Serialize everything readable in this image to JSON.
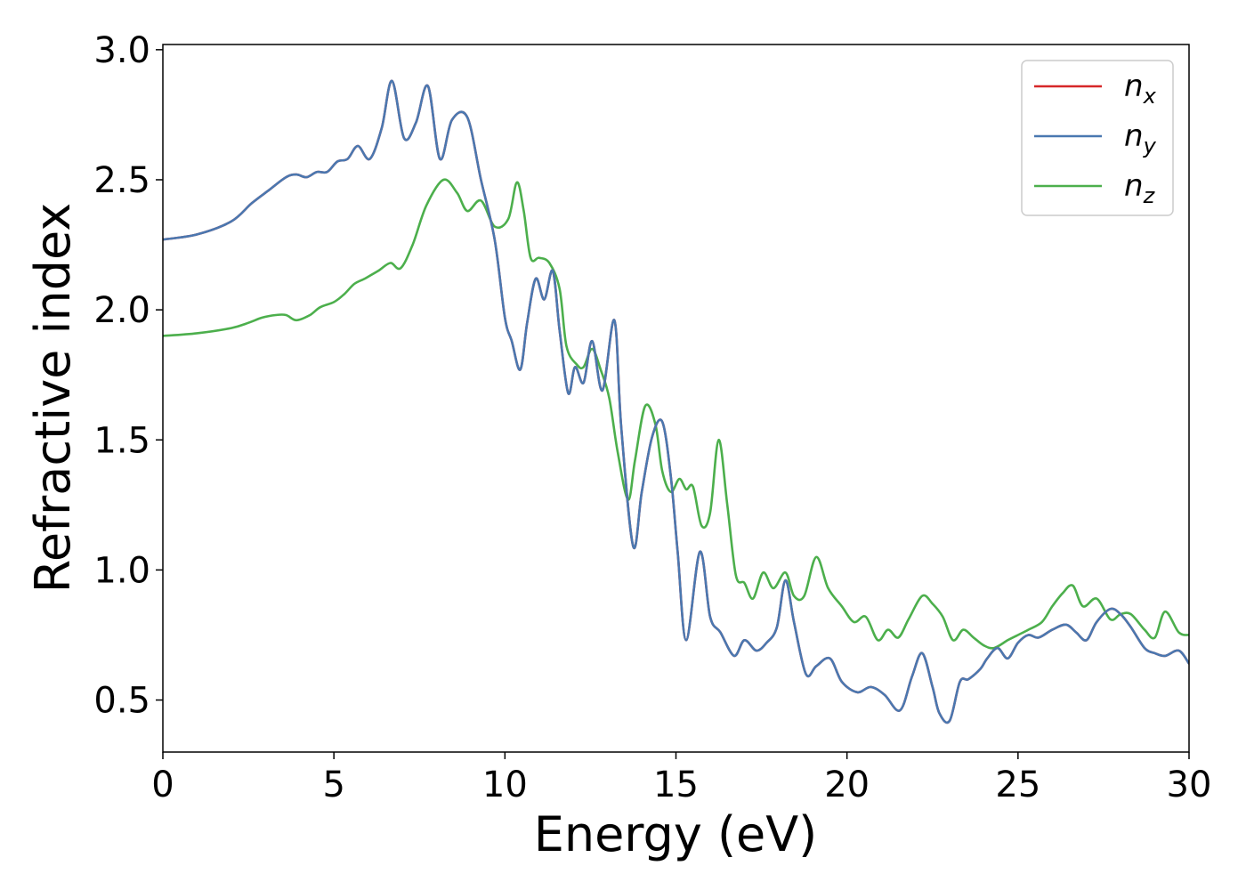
{
  "chart_data": {
    "type": "line",
    "title": "",
    "xlabel": "Energy (eV)",
    "ylabel": "Refractive index",
    "xlim": [
      0,
      30
    ],
    "ylim": [
      0.3,
      3.02
    ],
    "xticks": [
      0,
      5,
      10,
      15,
      20,
      25,
      30
    ],
    "yticks": [
      0.5,
      1.0,
      1.5,
      2.0,
      2.5,
      3.0
    ],
    "xtick_labels": [
      "0",
      "5",
      "10",
      "15",
      "20",
      "25",
      "30"
    ],
    "ytick_labels": [
      "0.5",
      "1.0",
      "1.5",
      "2.0",
      "2.5",
      "3.0"
    ],
    "grid": false,
    "legend_position": "top-right",
    "colors": {
      "n_x": "#d62728",
      "n_y": "#4a78b0",
      "n_z": "#4caf4c"
    },
    "series": [
      {
        "name": "n_x",
        "label_base": "n",
        "label_sub": "x",
        "x": [
          0,
          1,
          2,
          2.6,
          3.1,
          3.6,
          3.9,
          4.2,
          4.5,
          4.8,
          5.1,
          5.4,
          5.7,
          6.05,
          6.4,
          6.7,
          7.05,
          7.4,
          7.75,
          8.1,
          8.45,
          8.9,
          9.3,
          9.7,
          10.0,
          10.2,
          10.45,
          10.65,
          10.9,
          11.15,
          11.4,
          11.6,
          11.85,
          12.05,
          12.3,
          12.55,
          12.85,
          13.2,
          13.4,
          13.75,
          14.0,
          14.3,
          14.6,
          14.85,
          15.05,
          15.3,
          15.7,
          16.0,
          16.3,
          16.7,
          17.0,
          17.35,
          17.65,
          17.95,
          18.2,
          18.45,
          18.8,
          19.1,
          19.5,
          19.85,
          20.3,
          20.7,
          21.1,
          21.55,
          21.9,
          22.2,
          22.5,
          22.7,
          23.0,
          23.3,
          23.55,
          23.9,
          24.1,
          24.4,
          24.7,
          25.0,
          25.3,
          25.6,
          26.0,
          26.4,
          26.7,
          27.0,
          27.3,
          27.7,
          28.0,
          28.3,
          28.7,
          29.0,
          29.3,
          29.7,
          30.0
        ],
        "y": [
          2.27,
          2.29,
          2.34,
          2.41,
          2.46,
          2.51,
          2.52,
          2.51,
          2.53,
          2.53,
          2.57,
          2.58,
          2.63,
          2.58,
          2.7,
          2.88,
          2.66,
          2.72,
          2.86,
          2.58,
          2.73,
          2.74,
          2.5,
          2.27,
          1.97,
          1.88,
          1.77,
          1.95,
          2.12,
          2.04,
          2.15,
          1.92,
          1.68,
          1.78,
          1.72,
          1.88,
          1.69,
          1.96,
          1.55,
          1.09,
          1.3,
          1.51,
          1.57,
          1.36,
          1.07,
          0.73,
          1.07,
          0.82,
          0.76,
          0.67,
          0.73,
          0.69,
          0.72,
          0.78,
          0.96,
          0.8,
          0.6,
          0.63,
          0.66,
          0.57,
          0.53,
          0.55,
          0.52,
          0.46,
          0.59,
          0.68,
          0.55,
          0.45,
          0.42,
          0.57,
          0.58,
          0.62,
          0.66,
          0.7,
          0.66,
          0.72,
          0.75,
          0.74,
          0.77,
          0.79,
          0.76,
          0.73,
          0.8,
          0.85,
          0.83,
          0.78,
          0.7,
          0.68,
          0.67,
          0.69,
          0.64
        ]
      },
      {
        "name": "n_y",
        "label_base": "n",
        "label_sub": "y",
        "x": [
          0,
          1,
          2,
          2.6,
          3.1,
          3.6,
          3.9,
          4.2,
          4.5,
          4.8,
          5.1,
          5.4,
          5.7,
          6.05,
          6.4,
          6.7,
          7.05,
          7.4,
          7.75,
          8.1,
          8.45,
          8.9,
          9.3,
          9.7,
          10.0,
          10.2,
          10.45,
          10.65,
          10.9,
          11.15,
          11.4,
          11.6,
          11.85,
          12.05,
          12.3,
          12.55,
          12.85,
          13.2,
          13.4,
          13.75,
          14.0,
          14.3,
          14.6,
          14.85,
          15.05,
          15.3,
          15.7,
          16.0,
          16.3,
          16.7,
          17.0,
          17.35,
          17.65,
          17.95,
          18.2,
          18.45,
          18.8,
          19.1,
          19.5,
          19.85,
          20.3,
          20.7,
          21.1,
          21.55,
          21.9,
          22.2,
          22.5,
          22.7,
          23.0,
          23.3,
          23.55,
          23.9,
          24.1,
          24.4,
          24.7,
          25.0,
          25.3,
          25.6,
          26.0,
          26.4,
          26.7,
          27.0,
          27.3,
          27.7,
          28.0,
          28.3,
          28.7,
          29.0,
          29.3,
          29.7,
          30.0
        ],
        "y": [
          2.27,
          2.29,
          2.34,
          2.41,
          2.46,
          2.51,
          2.52,
          2.51,
          2.53,
          2.53,
          2.57,
          2.58,
          2.63,
          2.58,
          2.7,
          2.88,
          2.66,
          2.72,
          2.86,
          2.58,
          2.73,
          2.74,
          2.5,
          2.27,
          1.97,
          1.88,
          1.77,
          1.95,
          2.12,
          2.04,
          2.15,
          1.92,
          1.68,
          1.78,
          1.72,
          1.88,
          1.69,
          1.96,
          1.55,
          1.09,
          1.3,
          1.51,
          1.57,
          1.36,
          1.07,
          0.73,
          1.07,
          0.82,
          0.76,
          0.67,
          0.73,
          0.69,
          0.72,
          0.78,
          0.96,
          0.8,
          0.6,
          0.63,
          0.66,
          0.57,
          0.53,
          0.55,
          0.52,
          0.46,
          0.59,
          0.68,
          0.55,
          0.45,
          0.42,
          0.57,
          0.58,
          0.62,
          0.66,
          0.7,
          0.66,
          0.72,
          0.75,
          0.74,
          0.77,
          0.79,
          0.76,
          0.73,
          0.8,
          0.85,
          0.83,
          0.78,
          0.7,
          0.68,
          0.67,
          0.69,
          0.64
        ]
      },
      {
        "name": "n_z",
        "label_base": "n",
        "label_sub": "z",
        "x": [
          0,
          1,
          2,
          2.5,
          2.9,
          3.3,
          3.6,
          3.9,
          4.3,
          4.6,
          5.0,
          5.3,
          5.6,
          5.9,
          6.3,
          6.65,
          6.95,
          7.3,
          7.7,
          8.2,
          8.6,
          8.9,
          9.3,
          9.7,
          10.1,
          10.35,
          10.55,
          10.75,
          11.0,
          11.3,
          11.6,
          11.8,
          12.1,
          12.3,
          12.55,
          12.8,
          13.05,
          13.3,
          13.6,
          13.8,
          14.1,
          14.4,
          14.6,
          14.85,
          15.1,
          15.3,
          15.5,
          15.75,
          16.0,
          16.25,
          16.5,
          16.75,
          17.0,
          17.25,
          17.55,
          17.85,
          18.2,
          18.45,
          18.75,
          19.1,
          19.45,
          19.85,
          20.2,
          20.55,
          20.9,
          21.2,
          21.5,
          21.8,
          22.2,
          22.5,
          22.8,
          23.1,
          23.4,
          23.7,
          24.0,
          24.3,
          24.7,
          25.0,
          25.3,
          25.7,
          26.0,
          26.3,
          26.6,
          26.9,
          27.3,
          27.7,
          28.0,
          28.3,
          28.7,
          29.0,
          29.3,
          29.7,
          30.0
        ],
        "y": [
          1.9,
          1.91,
          1.93,
          1.95,
          1.97,
          1.98,
          1.98,
          1.96,
          1.98,
          2.01,
          2.03,
          2.06,
          2.1,
          2.12,
          2.15,
          2.18,
          2.16,
          2.25,
          2.4,
          2.5,
          2.45,
          2.38,
          2.42,
          2.32,
          2.35,
          2.49,
          2.38,
          2.2,
          2.2,
          2.18,
          2.08,
          1.86,
          1.79,
          1.78,
          1.85,
          1.77,
          1.66,
          1.45,
          1.27,
          1.42,
          1.63,
          1.56,
          1.38,
          1.3,
          1.35,
          1.31,
          1.32,
          1.17,
          1.22,
          1.5,
          1.25,
          0.98,
          0.95,
          0.89,
          0.99,
          0.93,
          0.99,
          0.9,
          0.9,
          1.05,
          0.93,
          0.86,
          0.8,
          0.82,
          0.73,
          0.77,
          0.74,
          0.81,
          0.9,
          0.87,
          0.82,
          0.73,
          0.77,
          0.74,
          0.71,
          0.7,
          0.73,
          0.75,
          0.77,
          0.8,
          0.86,
          0.91,
          0.94,
          0.86,
          0.89,
          0.81,
          0.83,
          0.83,
          0.77,
          0.74,
          0.84,
          0.76,
          0.75
        ]
      }
    ]
  }
}
